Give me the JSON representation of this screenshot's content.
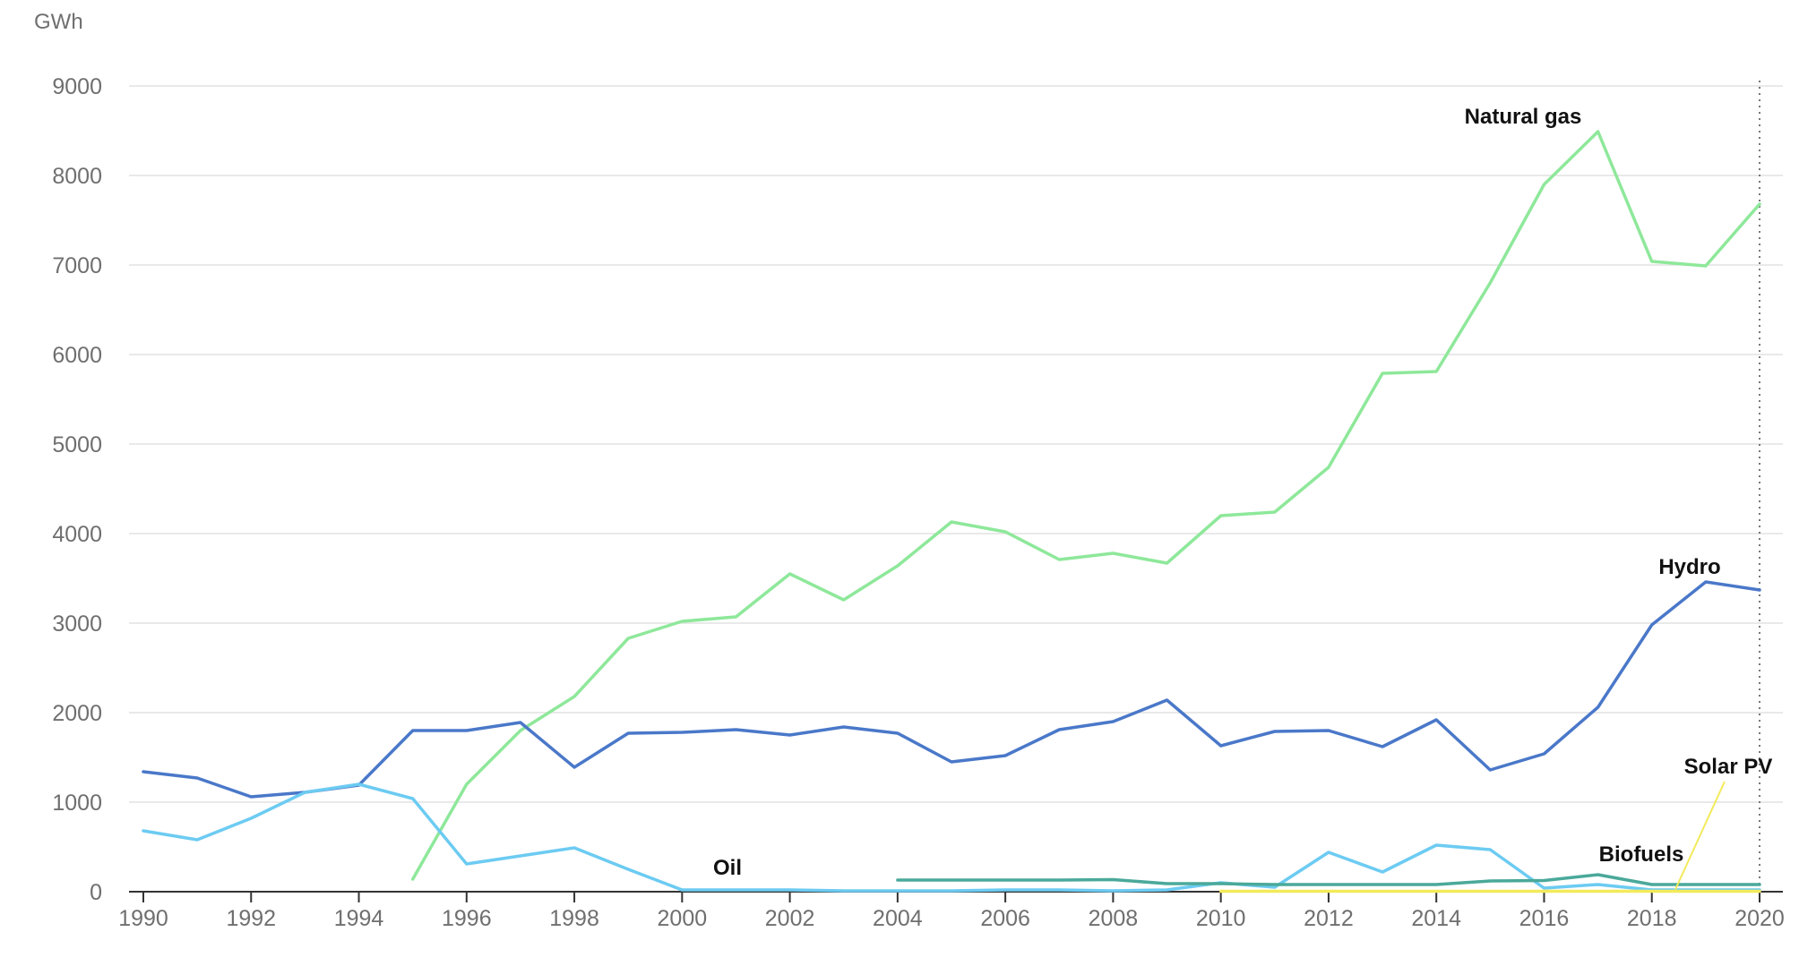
{
  "chart_data": {
    "type": "line",
    "unit_label": "GWh",
    "ylim": [
      0,
      9000
    ],
    "y_ticks": [
      0,
      1000,
      2000,
      3000,
      4000,
      5000,
      6000,
      7000,
      8000,
      9000
    ],
    "x_range": [
      1990,
      2020
    ],
    "x_ticks": [
      1990,
      1992,
      1994,
      1996,
      1998,
      2000,
      2002,
      2004,
      2006,
      2008,
      2010,
      2012,
      2014,
      2016,
      2018,
      2020
    ],
    "grid": true,
    "reference_line_x": 2020,
    "series": [
      {
        "name": "Natural gas",
        "color": "#8ee89a",
        "x": [
          1995,
          1996,
          1997,
          1998,
          1999,
          2000,
          2001,
          2002,
          2003,
          2004,
          2005,
          2006,
          2007,
          2008,
          2009,
          2010,
          2011,
          2012,
          2013,
          2014,
          2015,
          2016,
          2017,
          2018,
          2019,
          2020
        ],
        "values": [
          140,
          1200,
          1800,
          2180,
          2830,
          3020,
          3070,
          3550,
          3260,
          3640,
          4130,
          4020,
          3710,
          3780,
          3670,
          4200,
          4240,
          4740,
          5790,
          5810,
          6800,
          7900,
          8490,
          7040,
          6990,
          7680
        ]
      },
      {
        "name": "Hydro",
        "color": "#4a78c9",
        "x": [
          1990,
          1991,
          1992,
          1993,
          1994,
          1995,
          1996,
          1997,
          1998,
          1999,
          2000,
          2001,
          2002,
          2003,
          2004,
          2005,
          2006,
          2007,
          2008,
          2009,
          2010,
          2011,
          2012,
          2013,
          2014,
          2015,
          2016,
          2017,
          2018,
          2019,
          2020
        ],
        "values": [
          1340,
          1270,
          1060,
          1110,
          1190,
          1800,
          1800,
          1890,
          1390,
          1770,
          1780,
          1810,
          1750,
          1840,
          1770,
          1450,
          1520,
          1810,
          1900,
          2140,
          1630,
          1790,
          1800,
          1620,
          1920,
          1360,
          1540,
          2060,
          2980,
          3460,
          3370
        ]
      },
      {
        "name": "Oil",
        "color": "#6ccbf2",
        "x": [
          1990,
          1991,
          1992,
          1993,
          1994,
          1995,
          1996,
          1997,
          1998,
          1999,
          2000,
          2001,
          2002,
          2003,
          2004,
          2005,
          2006,
          2007,
          2008,
          2009,
          2010,
          2011,
          2012,
          2013,
          2014,
          2015,
          2016,
          2017,
          2018,
          2019,
          2020
        ],
        "values": [
          680,
          580,
          820,
          1110,
          1200,
          1040,
          310,
          400,
          490,
          250,
          20,
          20,
          20,
          10,
          10,
          10,
          20,
          20,
          10,
          20,
          100,
          50,
          440,
          220,
          520,
          470,
          40,
          80,
          20,
          20,
          20
        ]
      },
      {
        "name": "Biofuels",
        "color": "#4aa99a",
        "x": [
          2004,
          2005,
          2006,
          2007,
          2008,
          2009,
          2010,
          2011,
          2012,
          2013,
          2014,
          2015,
          2016,
          2017,
          2018,
          2019,
          2020
        ],
        "values": [
          130,
          130,
          130,
          130,
          135,
          90,
          90,
          80,
          80,
          80,
          80,
          120,
          125,
          190,
          80,
          80,
          80
        ]
      },
      {
        "name": "Solar PV",
        "color": "#f3ea5a",
        "x": [
          2010,
          2011,
          2012,
          2013,
          2014,
          2015,
          2016,
          2017,
          2018,
          2019,
          2020
        ],
        "values": [
          5,
          5,
          5,
          5,
          5,
          5,
          5,
          5,
          5,
          5,
          5
        ]
      }
    ]
  }
}
